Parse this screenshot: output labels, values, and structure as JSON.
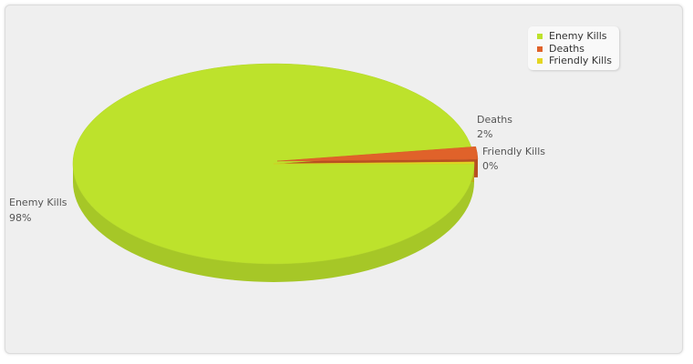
{
  "chart_data": {
    "type": "pie",
    "three_d": true,
    "slices": [
      {
        "label": "Enemy Kills",
        "value": 98,
        "percent_label": "98%",
        "color": "#bde22c"
      },
      {
        "label": "Deaths",
        "value": 2,
        "percent_label": "2%",
        "color": "#e0622a"
      },
      {
        "label": "Friendly Kills",
        "value": 0,
        "percent_label": "0%",
        "color": "#e4d622"
      }
    ],
    "legend": {
      "placement": "top-right",
      "items": [
        "Enemy Kills",
        "Deaths",
        "Friendly Kills"
      ]
    }
  }
}
